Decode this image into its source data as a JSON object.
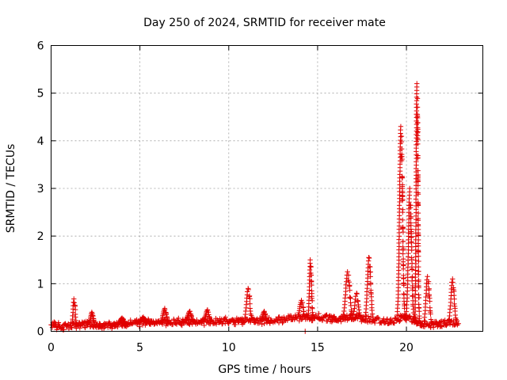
{
  "chart_data": {
    "type": "scatter",
    "title": "Day 250 of 2024, SRMTID for receiver mate",
    "xlabel": "GPS time / hours",
    "ylabel": "SRMTID / TECUs",
    "xlim": [
      0,
      24.3
    ],
    "ylim": [
      0,
      6
    ],
    "xticks": [
      0,
      5,
      10,
      15,
      20
    ],
    "xtick_labels": [
      "0",
      "5",
      "10",
      "15",
      "20"
    ],
    "yticks": [
      0,
      1,
      2,
      3,
      4,
      5,
      6
    ],
    "ytick_labels": [
      "0",
      "1",
      "2",
      "3",
      "4",
      "5",
      "6"
    ],
    "grid": true,
    "marker": "plus",
    "color": "#e00000",
    "series": [
      {
        "name": "SRMTID",
        "profile_note": "dense per-epoch samples summarised as background level plus peaks (data units)",
        "t_start": 0.0,
        "t_end": 22.9,
        "background": [
          [
            0.0,
            0.12
          ],
          [
            1.0,
            0.1
          ],
          [
            2.0,
            0.15
          ],
          [
            3.0,
            0.12
          ],
          [
            4.0,
            0.15
          ],
          [
            5.0,
            0.18
          ],
          [
            6.0,
            0.18
          ],
          [
            7.0,
            0.2
          ],
          [
            8.0,
            0.2
          ],
          [
            9.0,
            0.2
          ],
          [
            10.0,
            0.22
          ],
          [
            11.0,
            0.22
          ],
          [
            12.0,
            0.22
          ],
          [
            13.0,
            0.25
          ],
          [
            14.0,
            0.3
          ],
          [
            14.5,
            0.3
          ],
          [
            15.0,
            0.3
          ],
          [
            16.0,
            0.25
          ],
          [
            17.0,
            0.3
          ],
          [
            18.0,
            0.25
          ],
          [
            19.0,
            0.2
          ],
          [
            20.0,
            0.3
          ],
          [
            21.0,
            0.15
          ],
          [
            22.0,
            0.15
          ],
          [
            22.9,
            0.2
          ]
        ],
        "peaks": [
          {
            "t": 1.3,
            "v": 0.68,
            "w": 0.12
          },
          {
            "t": 2.3,
            "v": 0.4,
            "w": 0.15
          },
          {
            "t": 4.0,
            "v": 0.28,
            "w": 0.2
          },
          {
            "t": 5.2,
            "v": 0.3,
            "w": 0.2
          },
          {
            "t": 6.4,
            "v": 0.48,
            "w": 0.2
          },
          {
            "t": 7.8,
            "v": 0.42,
            "w": 0.2
          },
          {
            "t": 8.8,
            "v": 0.45,
            "w": 0.2
          },
          {
            "t": 11.1,
            "v": 0.9,
            "w": 0.2
          },
          {
            "t": 12.0,
            "v": 0.42,
            "w": 0.15
          },
          {
            "t": 14.1,
            "v": 0.65,
            "w": 0.2
          },
          {
            "t": 14.6,
            "v": 1.5,
            "w": 0.12
          },
          {
            "t": 16.7,
            "v": 1.25,
            "w": 0.25
          },
          {
            "t": 17.2,
            "v": 0.8,
            "w": 0.2
          },
          {
            "t": 17.9,
            "v": 1.55,
            "w": 0.2
          },
          {
            "t": 19.7,
            "v": 4.3,
            "w": 0.18
          },
          {
            "t": 20.2,
            "v": 3.0,
            "w": 0.18
          },
          {
            "t": 20.6,
            "v": 5.2,
            "w": 0.1
          },
          {
            "t": 21.2,
            "v": 1.15,
            "w": 0.2
          },
          {
            "t": 22.6,
            "v": 1.1,
            "w": 0.2
          }
        ],
        "outliers": [
          [
            14.3,
            0.0
          ]
        ]
      }
    ]
  }
}
